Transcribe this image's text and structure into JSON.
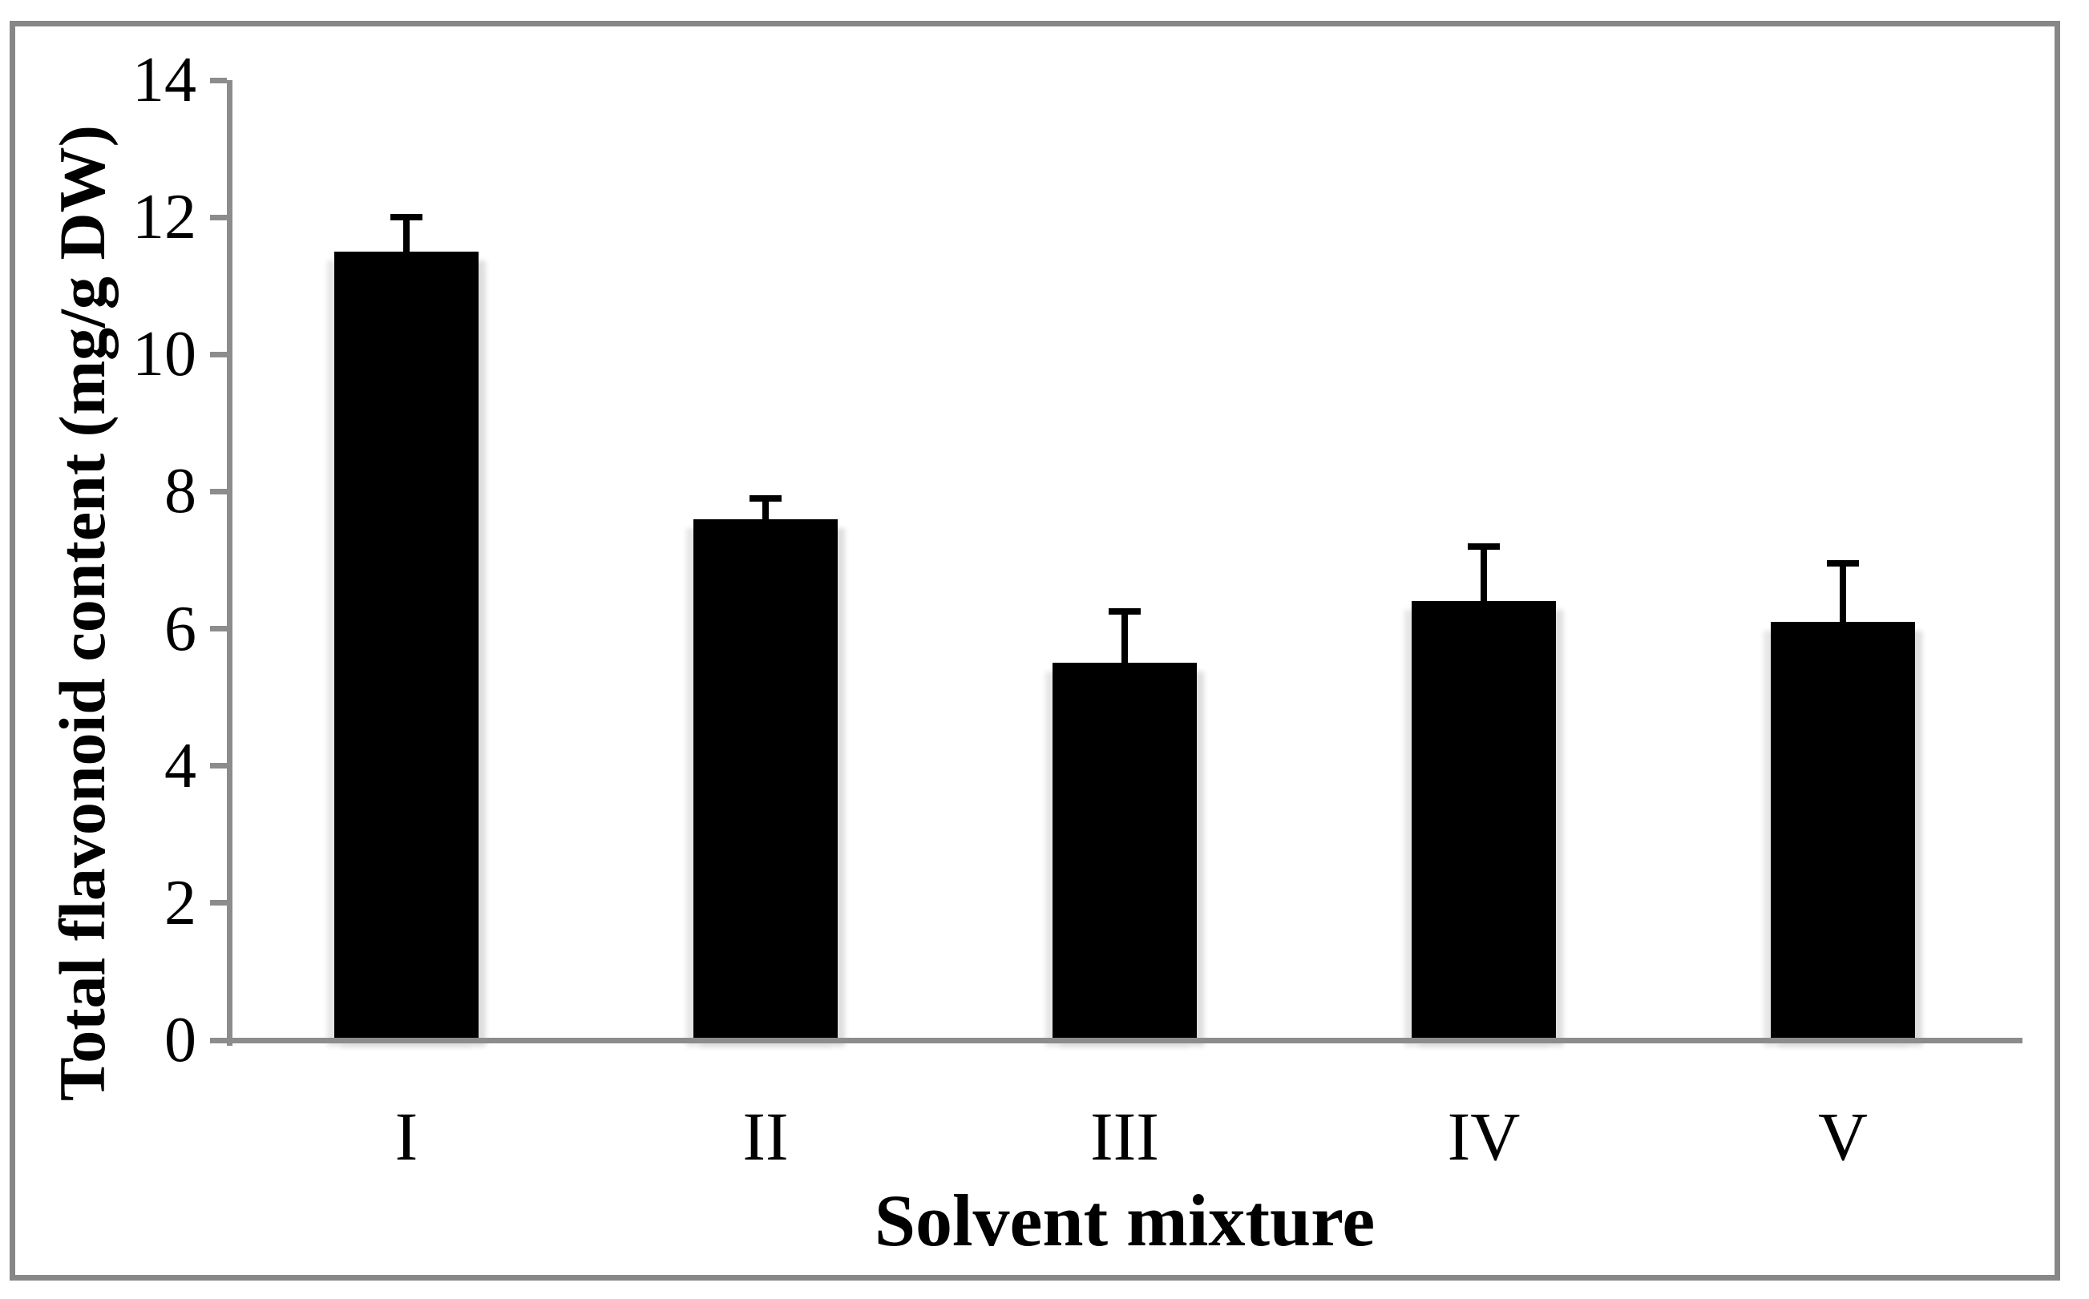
{
  "chart_data": {
    "type": "bar",
    "title": "",
    "categories": [
      "I",
      "II",
      "III",
      "IV",
      "V"
    ],
    "values": [
      11.5,
      7.6,
      5.5,
      6.4,
      6.1
    ],
    "errors_upper": [
      0.5,
      0.3,
      0.75,
      0.8,
      0.85
    ],
    "xlabel": "Solvent mixture",
    "ylabel": "Total flavonoid content (mg/g DW)",
    "ylim": [
      0,
      14
    ],
    "yticks": [
      0,
      2,
      4,
      6,
      8,
      10,
      12,
      14
    ],
    "grid": "off",
    "legend": "none",
    "bar_color": "#000000",
    "axis_color": "#8C8C8C",
    "frame_color": "#878787",
    "shadow_color": "#DEDEDE",
    "background_color": "#FFFFFF"
  }
}
